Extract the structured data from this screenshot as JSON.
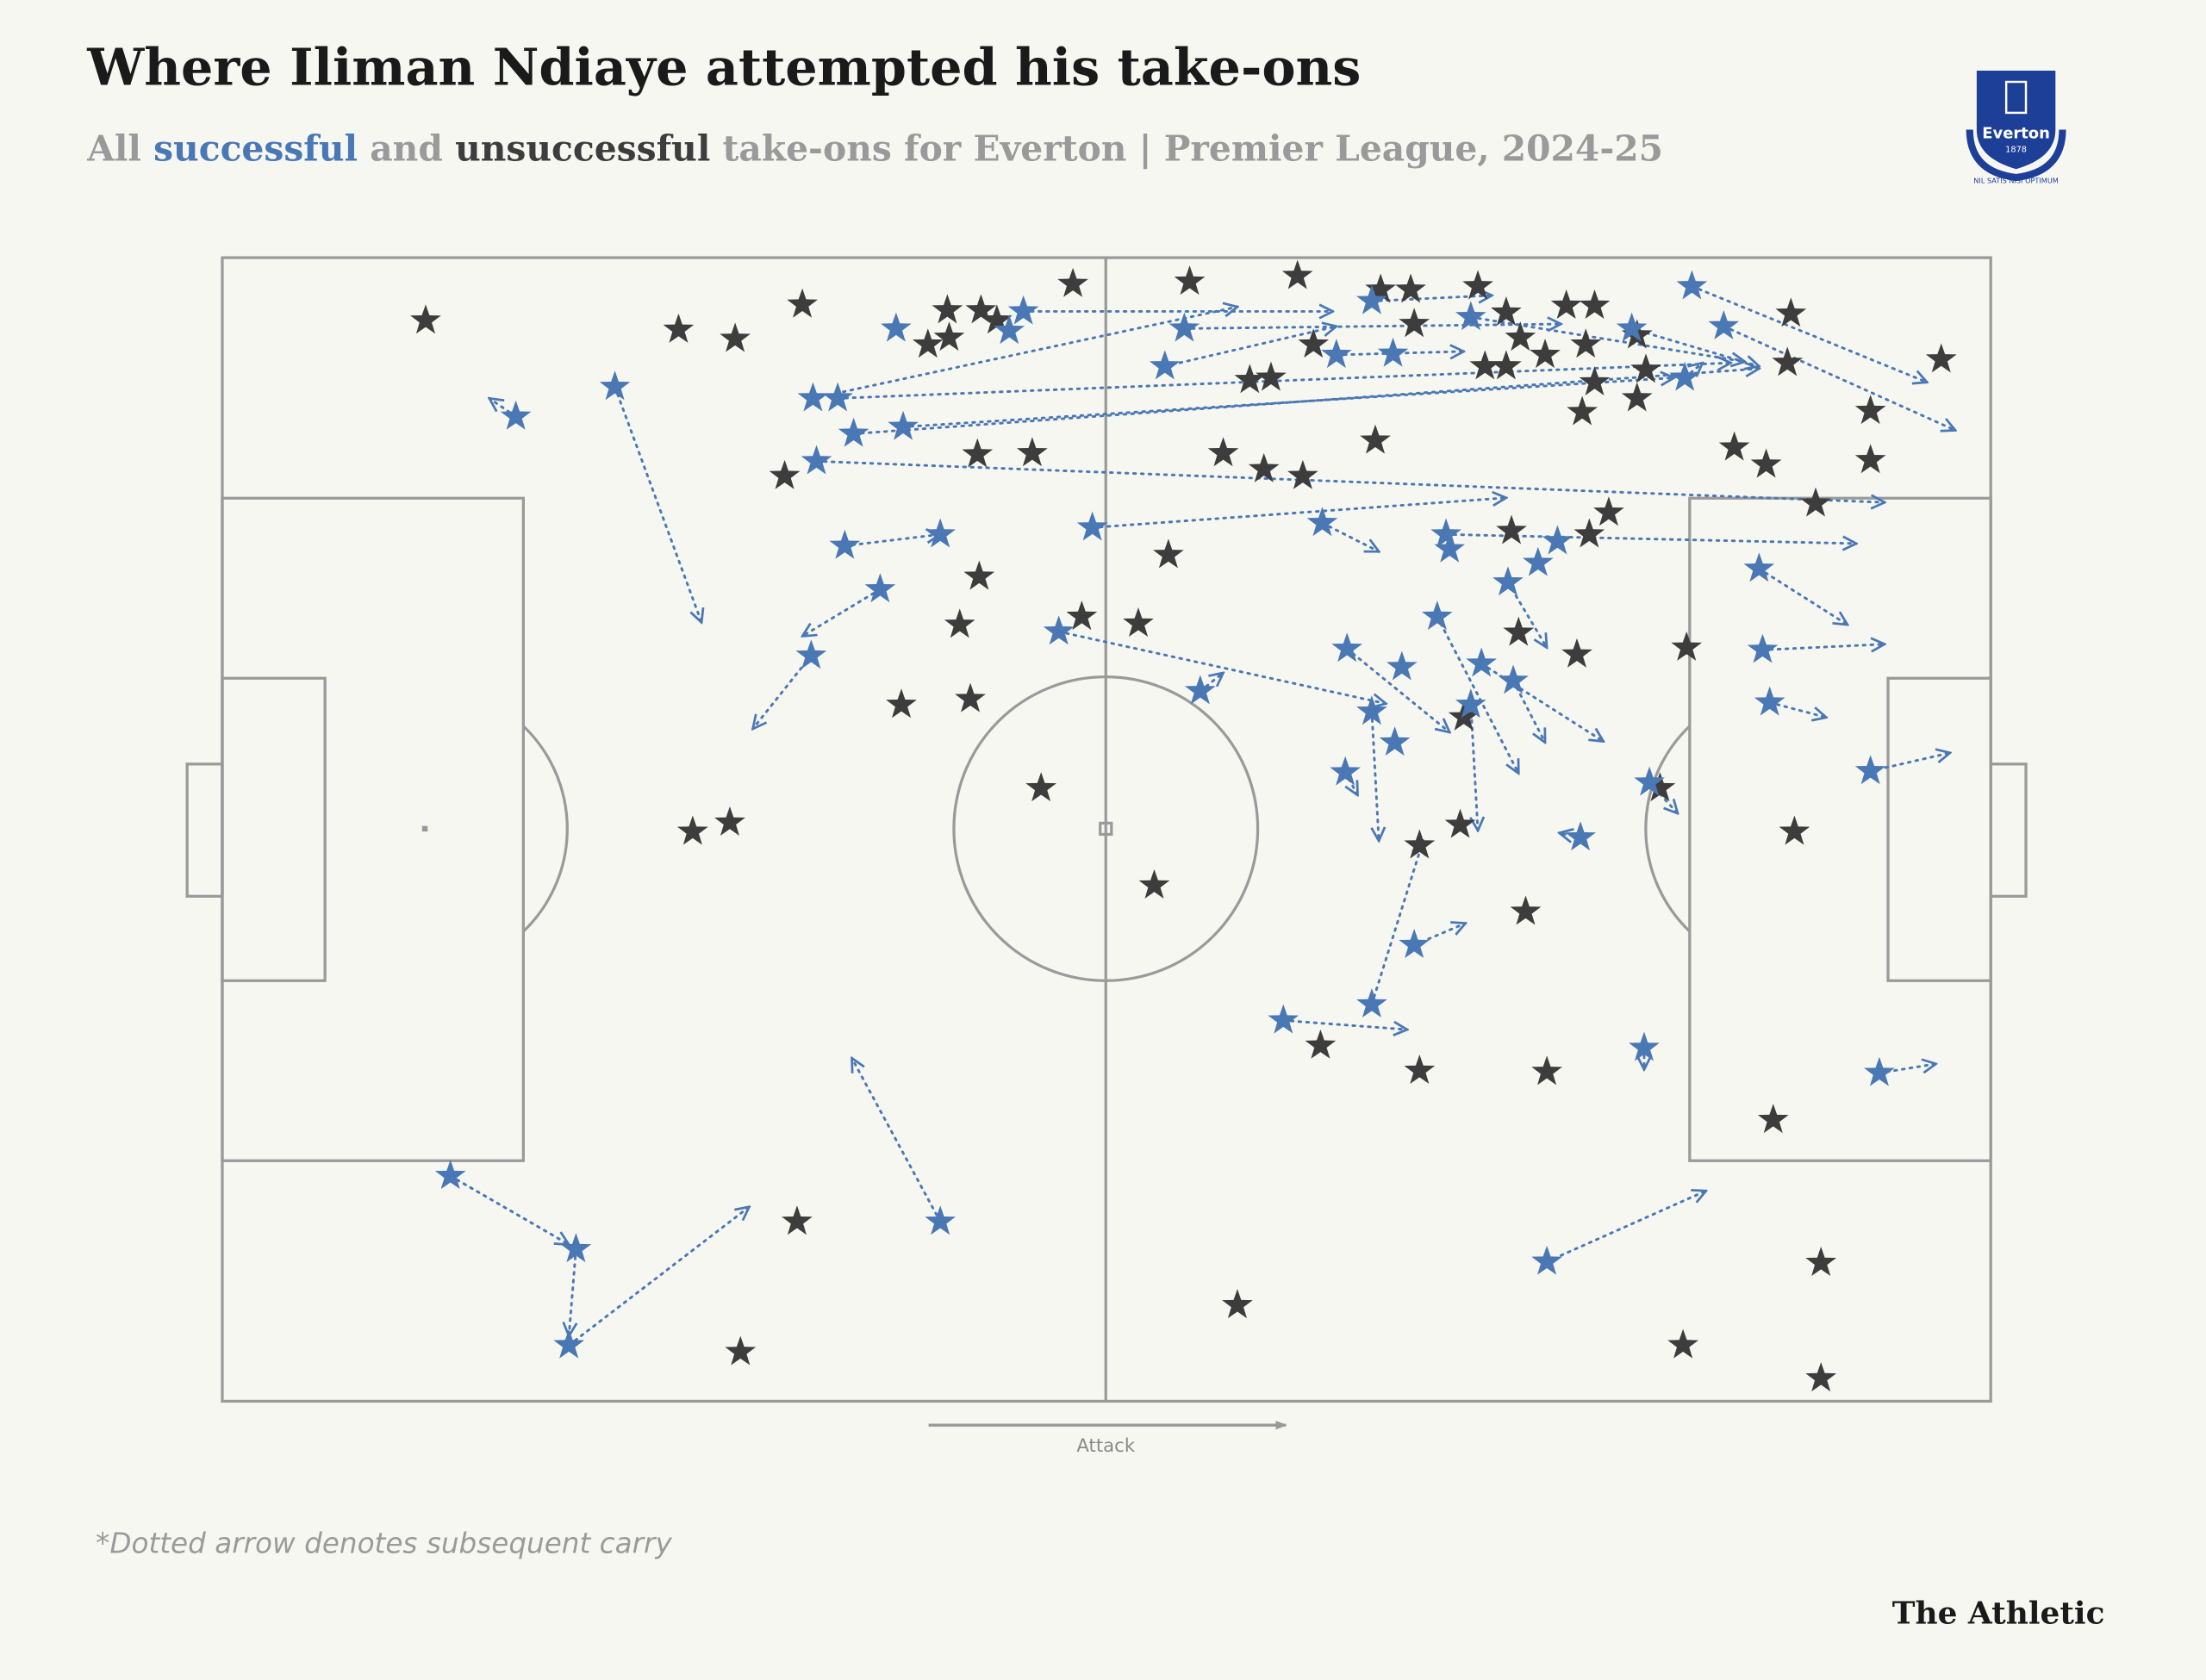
{
  "chart_data": {
    "type": "scatter",
    "title": "Where Iliman Ndiaye attempted his take-ons",
    "subtitle": [
      "All",
      "and",
      "take-ons for Everton | Premier League, 2024-25"
    ],
    "x_label": "Attack",
    "note": "*Dotted arrow denotes subsequent carry",
    "source": "The Athletic",
    "badge": {
      "name": "Everton",
      "year": "1878",
      "motto": "NIL SATIS NISI OPTIMUM"
    },
    "xlim": [
      0,
      100
    ],
    "ylim": [
      100,
      0
    ],
    "series": [
      {
        "name": "successful",
        "color": "#4a78b5",
        "x": [
          16.6,
          22.2,
          33.4,
          34.8,
          35.7,
          38.5,
          33.6,
          38.1,
          45.3,
          44.5,
          35.2,
          40.6,
          37.2,
          33.3,
          49.2,
          47.3,
          55.3,
          53.3,
          54.4,
          65.0,
          70.6,
          79.7,
          83.1,
          84.9,
          82.7,
          63.0,
          66.2,
          62.2,
          69.2,
          69.4,
          75.5,
          72.7,
          74.4,
          68.7,
          63.6,
          66.7,
          71.2,
          73.0,
          70.6,
          65.0,
          66.3,
          63.5,
          80.7,
          76.8,
          86.9,
          87.1,
          87.5,
          93.2,
          67.4,
          65.0,
          60.0,
          80.4,
          93.7,
          12.9,
          20.0,
          19.6,
          40.6,
          74.9
        ],
        "y": [
          13.9,
          11.3,
          12.3,
          12.3,
          15.4,
          14.8,
          17.8,
          6.2,
          4.7,
          6.4,
          25.2,
          24.2,
          29.0,
          34.8,
          23.6,
          32.7,
          37.9,
          9.5,
          6.2,
          3.8,
          5.2,
          6.2,
          2.5,
          6.0,
          10.5,
          8.5,
          8.4,
          23.2,
          24.2,
          25.5,
          24.8,
          28.4,
          26.7,
          31.4,
          34.2,
          35.8,
          35.5,
          37.0,
          39.1,
          39.7,
          42.4,
          45.0,
          45.9,
          50.7,
          27.2,
          34.3,
          38.9,
          44.9,
          60.1,
          65.3,
          66.7,
          69.1,
          71.3,
          80.3,
          86.7,
          95.1,
          84.3,
          87.8
        ],
        "carry_x": [
          15.1,
          27.1,
          57.4,
          85.3,
          86.9,
          82.1,
          94.0,
          null,
          62.8,
          null,
          40.6,
          null,
          32.8,
          30.0,
          72.6,
          65.8,
          56.6,
          63.0,
          75.7,
          71.8,
          86.1,
          86.9,
          96.4,
          98.0,
          83.7,
          70.2,
          null,
          65.4,
          92.4,
          null,
          null,
          74.9,
          null,
          73.3,
          69.4,
          null,
          78.1,
          74.8,
          71.0,
          65.4,
          null,
          64.2,
          82.3,
          75.6,
          91.9,
          94.0,
          90.7,
          97.7,
          70.3,
          67.9,
          67.0,
          80.4,
          96.9,
          19.6,
          19.6,
          29.8,
          35.6,
          83.9
        ],
        "carry_y": [
          12.3,
          31.9,
          4.3,
          9.2,
          9.7,
          10.5,
          21.4,
          null,
          4.7,
          null,
          24.2,
          null,
          33.1,
          41.2,
          21.0,
          39.0,
          36.3,
          6.0,
          5.8,
          3.3,
          9.1,
          9.5,
          10.9,
          15.1,
          9.2,
          8.2,
          null,
          25.7,
          25.0,
          null,
          null,
          34.1,
          null,
          45.1,
          41.5,
          null,
          42.3,
          42.4,
          50.1,
          51.0,
          null,
          47.0,
          48.6,
          50.3,
          32.1,
          33.8,
          40.2,
          43.3,
          58.2,
          51.0,
          67.5,
          71.0,
          70.5,
          86.3,
          94.3,
          83.0,
          70.0,
          81.6
        ]
      },
      {
        "name": "unsuccessful",
        "color": "#3d3d3d",
        "x": [
          11.5,
          25.8,
          29.0,
          32.8,
          31.8,
          42.7,
          45.8,
          48.1,
          41.0,
          42.9,
          39.9,
          41.1,
          43.8,
          54.7,
          60.8,
          65.5,
          67.2,
          71.0,
          72.6,
          76.0,
          77.6,
          73.4,
          77.1,
          80.0,
          71.4,
          72.6,
          74.8,
          77.6,
          80.5,
          76.9,
          80.0,
          88.7,
          88.5,
          97.2,
          93.2,
          93.2,
          85.5,
          87.3,
          90.1,
          58.1,
          59.3,
          61.7,
          67.4,
          56.6,
          58.9,
          61.1,
          65.2,
          78.4,
          77.3,
          72.9,
          53.5,
          42.8,
          41.7,
          48.6,
          51.8,
          38.4,
          42.3,
          73.3,
          76.6,
          82.8,
          70.2,
          81.3,
          46.3,
          26.6,
          28.7,
          88.9,
          70.0,
          67.7,
          52.7,
          73.7,
          62.1,
          67.7,
          74.9,
          87.7,
          32.5,
          57.4,
          90.4,
          29.3,
          82.6,
          90.4
        ],
        "y": [
          5.5,
          6.3,
          7.1,
          4.1,
          19.1,
          17.2,
          17.1,
          2.3,
          4.6,
          4.6,
          7.6,
          7.0,
          5.5,
          2.1,
          1.6,
          2.8,
          2.8,
          2.5,
          4.8,
          4.2,
          4.2,
          7.0,
          7.6,
          6.8,
          9.5,
          9.5,
          8.5,
          10.9,
          9.8,
          13.5,
          12.3,
          4.9,
          9.2,
          8.9,
          13.4,
          17.7,
          16.6,
          18.1,
          21.5,
          10.7,
          10.5,
          7.6,
          5.8,
          17.1,
          18.5,
          19.1,
          16.0,
          22.3,
          24.2,
          23.9,
          26.0,
          27.9,
          32.1,
          31.4,
          32.0,
          39.1,
          38.6,
          32.8,
          34.7,
          34.1,
          40.2,
          46.4,
          46.4,
          50.2,
          49.4,
          50.2,
          49.6,
          51.4,
          54.9,
          57.2,
          68.9,
          71.1,
          71.2,
          75.4,
          84.3,
          91.6,
          87.9,
          95.7,
          95.1,
          98.0
        ]
      }
    ]
  }
}
